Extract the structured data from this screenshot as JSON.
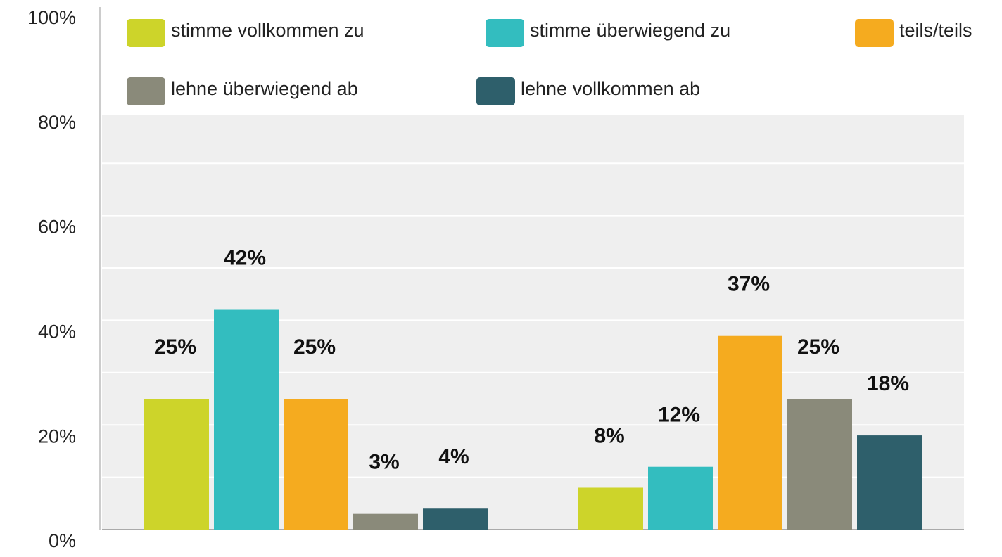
{
  "chart_data": {
    "type": "bar",
    "categories": [
      null,
      null
    ],
    "series": [
      {
        "name": "stimme vollkommen zu",
        "color": "#cdd42a",
        "values": [
          25,
          8
        ],
        "value_labels": [
          "25%",
          "8%"
        ]
      },
      {
        "name": "stimme überwiegend zu",
        "color": "#33bdbf",
        "values": [
          42,
          12
        ],
        "value_labels": [
          "42%",
          "12%"
        ]
      },
      {
        "name": "teils/teils",
        "color": "#f5ab1f",
        "values": [
          25,
          37
        ],
        "value_labels": [
          "25%",
          "37%"
        ]
      },
      {
        "name": "lehne überwiegend ab",
        "color": "#8a8a7a",
        "values": [
          3,
          25
        ],
        "value_labels": [
          "3%",
          "25%"
        ]
      },
      {
        "name": "lehne vollkommen ab",
        "color": "#2e5f6b",
        "values": [
          4,
          18
        ],
        "value_labels": [
          "4%",
          "18%"
        ]
      }
    ],
    "ylim": [
      0,
      100
    ],
    "yticks": [
      {
        "value": 0,
        "label": "0%"
      },
      {
        "value": 20,
        "label": "20%"
      },
      {
        "value": 40,
        "label": "40%"
      },
      {
        "value": 60,
        "label": "60%"
      },
      {
        "value": 80,
        "label": "80%"
      },
      {
        "value": 100,
        "label": "100%"
      }
    ],
    "minor_yticks": [
      10,
      30,
      50,
      70
    ],
    "grid": true
  }
}
